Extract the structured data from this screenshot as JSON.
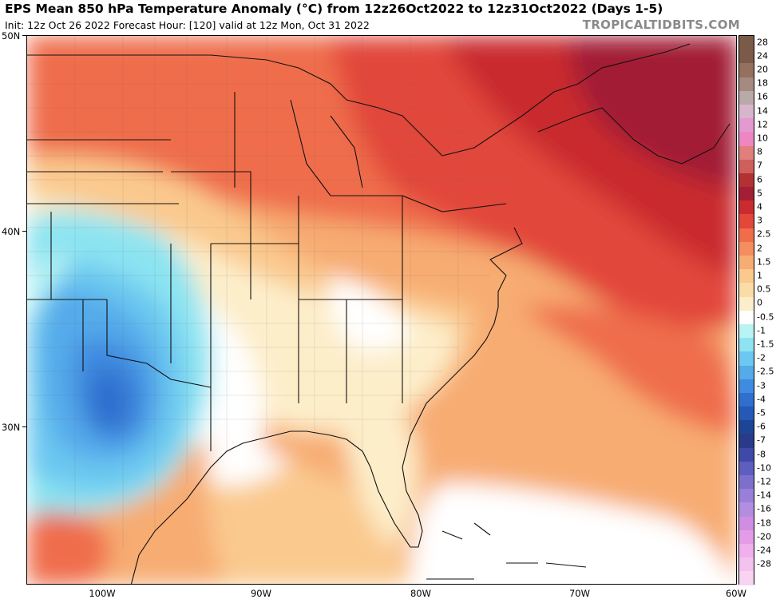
{
  "header": {
    "title": "EPS Mean 850 hPa Temperature Anomaly (°C) from 12z26Oct2022 to 12z31Oct2022 (Days 1-5)",
    "subtitle": "Init: 12z Oct 26 2022   Forecast Hour: [120]   valid at 12z Mon, Oct 31 2022",
    "brand": "TROPICALTIDBITS.COM"
  },
  "axes": {
    "lat_labels": [
      "50N",
      "40N",
      "30N"
    ],
    "lon_labels": [
      "100W",
      "90W",
      "80W",
      "70W",
      "60W"
    ]
  },
  "colorbar": {
    "levels": [
      {
        "label": "28",
        "color": "#7a5a48"
      },
      {
        "label": "24",
        "color": "#94705e"
      },
      {
        "label": "20",
        "color": "#a48a80"
      },
      {
        "label": "18",
        "color": "#b8aaa8"
      },
      {
        "label": "16",
        "color": "#d7b6cd"
      },
      {
        "label": "14",
        "color": "#e39ad0"
      },
      {
        "label": "12",
        "color": "#ee86c2"
      },
      {
        "label": "10",
        "color": "#e27e7c"
      },
      {
        "label": "8",
        "color": "#cf5f5a"
      },
      {
        "label": "7",
        "color": "#b33033"
      },
      {
        "label": "6",
        "color": "#a21f36"
      },
      {
        "label": "5",
        "color": "#c92b2f"
      },
      {
        "label": "4",
        "color": "#e2473a"
      },
      {
        "label": "3",
        "color": "#ef6d4b"
      },
      {
        "label": "2.5",
        "color": "#f48e5e"
      },
      {
        "label": "2",
        "color": "#f7ac72"
      },
      {
        "label": "1.5",
        "color": "#fac98e"
      },
      {
        "label": "1",
        "color": "#fcdca6"
      },
      {
        "label": "0.5",
        "color": "#fdeeca"
      },
      {
        "label": "0",
        "color": "#ffffff"
      },
      {
        "label": "-0.5",
        "color": "#b9f4f4"
      },
      {
        "label": "-1",
        "color": "#8ce4f1"
      },
      {
        "label": "-1.5",
        "color": "#6cc8f0"
      },
      {
        "label": "-2",
        "color": "#55aaea"
      },
      {
        "label": "-2.5",
        "color": "#3f8be0"
      },
      {
        "label": "-3",
        "color": "#2f6fcf"
      },
      {
        "label": "-4",
        "color": "#2559b5"
      },
      {
        "label": "-5",
        "color": "#1d4595"
      },
      {
        "label": "-6",
        "color": "#2a3a8a"
      },
      {
        "label": "-7",
        "color": "#3f4aa8"
      },
      {
        "label": "-8",
        "color": "#5e5ec0"
      },
      {
        "label": "-10",
        "color": "#7d6fcc"
      },
      {
        "label": "-12",
        "color": "#9a7fd8"
      },
      {
        "label": "-14",
        "color": "#b38ee0"
      },
      {
        "label": "-16",
        "color": "#d08ee2"
      },
      {
        "label": "-18",
        "color": "#e49ce8"
      },
      {
        "label": "-20",
        "color": "#efb0ec"
      },
      {
        "label": "-24",
        "color": "#f4c2ef"
      },
      {
        "label": "-28",
        "color": "#f8d4f2"
      }
    ]
  }
}
